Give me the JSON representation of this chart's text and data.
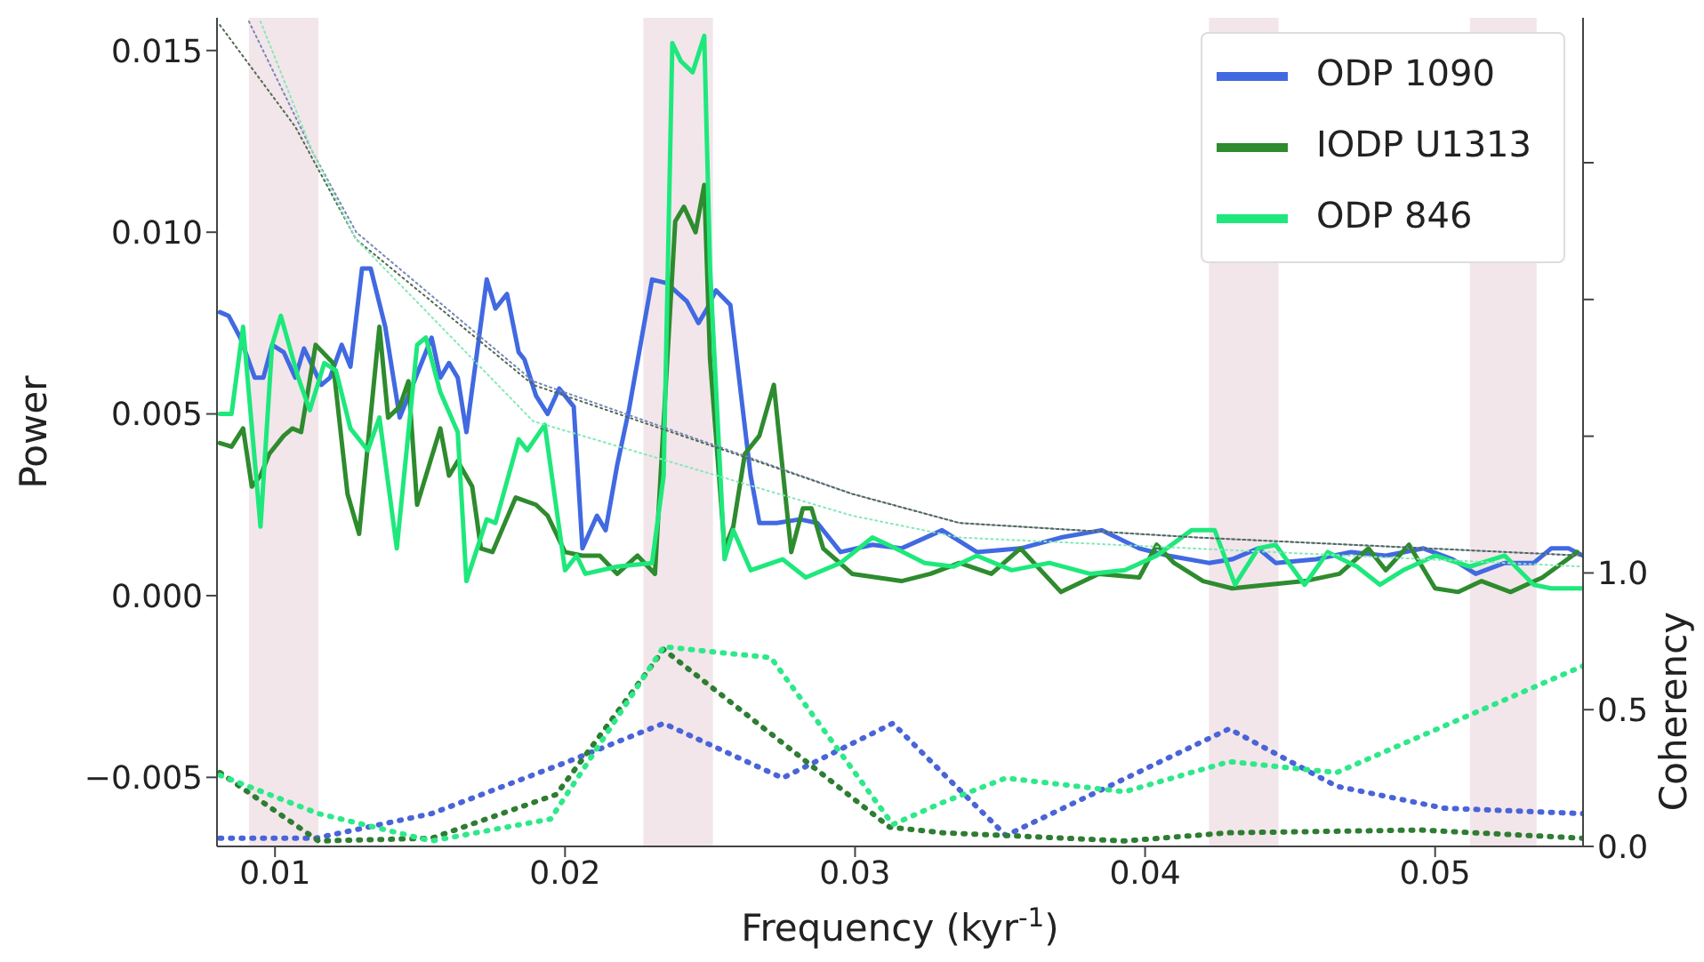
{
  "chart_data": {
    "type": "line",
    "xlabel": "Frequency (kyr$^{-1}$)",
    "ylabel": "Power",
    "y2label": "Coherency",
    "xlim": [
      0.008,
      0.0551
    ],
    "xticks": [
      0.01,
      0.02,
      0.03,
      0.04,
      0.05
    ],
    "ylim": [
      -0.0069,
      0.0159
    ],
    "yticks": [
      {
        "value": -0.005,
        "label": "−0.005"
      },
      {
        "value": 0,
        "label": "0.000"
      },
      {
        "value": 0.005,
        "label": "0.005"
      },
      {
        "value": 0.01,
        "label": "0.010"
      },
      {
        "value": 0.015,
        "label": "0.015"
      }
    ],
    "y2lim": [
      0,
      3.03
    ],
    "y2ticks": [
      {
        "value": 0,
        "label": "0.0"
      },
      {
        "value": 0.5,
        "label": "0.5"
      },
      {
        "value": 1,
        "label": "1.0"
      },
      {
        "value": 1.5,
        "label": null
      },
      {
        "value": 2,
        "label": null
      },
      {
        "value": 2.5,
        "label": null
      }
    ],
    "legend": "top right",
    "bands": [
      {
        "axis": "x",
        "from": 0.0091,
        "to": 0.0115,
        "color": "#f2e6ea"
      },
      {
        "axis": "x",
        "from": 0.0227,
        "to": 0.0251,
        "color": "#f2e6ea"
      },
      {
        "axis": "x",
        "from": 0.0422,
        "to": 0.0446,
        "color": "#f2e6ea"
      },
      {
        "axis": "x",
        "from": 0.0512,
        "to": 0.0535,
        "color": "#f2e6ea"
      }
    ],
    "series": [
      {
        "name": "ODP 1090",
        "color": "#4169e1",
        "line_style": "solid",
        "x": [
          0.0081,
          0.0084,
          0.0088,
          0.0093,
          0.0096,
          0.0099,
          0.0103,
          0.0107,
          0.011,
          0.0116,
          0.0119,
          0.0123,
          0.0126,
          0.013,
          0.0133,
          0.0138,
          0.0143,
          0.0148,
          0.0154,
          0.0157,
          0.016,
          0.0163,
          0.0166,
          0.0173,
          0.0176,
          0.018,
          0.0184,
          0.0186,
          0.019,
          0.0194,
          0.0198,
          0.0203,
          0.0206,
          0.0211,
          0.0214,
          0.0218,
          0.0222,
          0.023,
          0.0235,
          0.0242,
          0.0246,
          0.0249,
          0.0252,
          0.0257,
          0.0264,
          0.0267,
          0.0273,
          0.0281,
          0.0287,
          0.0295,
          0.0306,
          0.0316,
          0.033,
          0.0342,
          0.0357,
          0.0371,
          0.0385,
          0.0398,
          0.0408,
          0.0422,
          0.043,
          0.0439,
          0.0445,
          0.0459,
          0.0471,
          0.0483,
          0.0496,
          0.0506,
          0.0514,
          0.0524,
          0.0534,
          0.054,
          0.0546,
          0.0551
        ],
        "values": [
          0.0078,
          0.0077,
          0.0071,
          0.006,
          0.006,
          0.0069,
          0.0067,
          0.006,
          0.0068,
          0.0058,
          0.006,
          0.0069,
          0.0063,
          0.009,
          0.009,
          0.0074,
          0.0049,
          0.0059,
          0.0071,
          0.006,
          0.0064,
          0.006,
          0.0045,
          0.0087,
          0.0079,
          0.0083,
          0.0067,
          0.0065,
          0.0055,
          0.005,
          0.0057,
          0.0052,
          0.0013,
          0.0022,
          0.0018,
          0.0036,
          0.0051,
          0.0087,
          0.0086,
          0.0081,
          0.0075,
          0.0079,
          0.0084,
          0.008,
          0.0033,
          0.002,
          0.002,
          0.0021,
          0.002,
          0.0012,
          0.0014,
          0.0013,
          0.0018,
          0.0012,
          0.0013,
          0.0016,
          0.0018,
          0.0013,
          0.0011,
          0.0009,
          0.001,
          0.0013,
          0.0009,
          0.001,
          0.0012,
          0.0011,
          0.0013,
          0.001,
          0.0006,
          0.0009,
          0.0009,
          0.0013,
          0.0013,
          0.0011
        ]
      },
      {
        "name": "IODP U1313",
        "color": "#2e8b2e",
        "line_style": "solid",
        "x": [
          0.0081,
          0.0085,
          0.0089,
          0.0092,
          0.0095,
          0.0098,
          0.0103,
          0.0106,
          0.0109,
          0.0114,
          0.012,
          0.0125,
          0.0129,
          0.0136,
          0.0139,
          0.0143,
          0.0146,
          0.0149,
          0.0157,
          0.016,
          0.0163,
          0.0168,
          0.0171,
          0.0175,
          0.0183,
          0.019,
          0.0194,
          0.02,
          0.0206,
          0.0212,
          0.0218,
          0.0225,
          0.0231,
          0.0238,
          0.0241,
          0.0245,
          0.0248,
          0.025,
          0.0255,
          0.0258,
          0.0262,
          0.0267,
          0.0272,
          0.0278,
          0.0282,
          0.0285,
          0.0289,
          0.0299,
          0.0316,
          0.0326,
          0.0336,
          0.0347,
          0.0357,
          0.0371,
          0.0384,
          0.0398,
          0.0404,
          0.041,
          0.042,
          0.043,
          0.0442,
          0.0455,
          0.0467,
          0.0477,
          0.0483,
          0.0491,
          0.05,
          0.0508,
          0.0516,
          0.0526,
          0.0537,
          0.0549
        ],
        "values": [
          0.0042,
          0.0041,
          0.0046,
          0.003,
          0.0033,
          0.0039,
          0.0044,
          0.0046,
          0.0045,
          0.0069,
          0.0064,
          0.0028,
          0.0017,
          0.0074,
          0.0049,
          0.0052,
          0.0059,
          0.0025,
          0.0046,
          0.0033,
          0.0037,
          0.003,
          0.0013,
          0.0012,
          0.0027,
          0.0025,
          0.0022,
          0.0012,
          0.0011,
          0.0011,
          0.0006,
          0.0011,
          0.0006,
          0.0103,
          0.0107,
          0.01,
          0.0113,
          0.0065,
          0.0013,
          0.0019,
          0.0039,
          0.0044,
          0.0058,
          0.0012,
          0.0024,
          0.0024,
          0.0013,
          0.0006,
          0.0004,
          0.0006,
          0.0009,
          0.0006,
          0.0013,
          0.0001,
          0.0006,
          0.0005,
          0.0014,
          0.0009,
          0.0004,
          0.0002,
          0.0003,
          0.0004,
          0.0006,
          0.0013,
          0.0007,
          0.0014,
          0.0002,
          0.0001,
          0.0004,
          0.0001,
          0.0005,
          0.0012
        ]
      },
      {
        "name": "ODP 846",
        "color": "#1ee87c",
        "line_style": "solid",
        "x": [
          0.0081,
          0.0085,
          0.0089,
          0.0095,
          0.0099,
          0.0102,
          0.0108,
          0.0112,
          0.0117,
          0.0121,
          0.0126,
          0.0132,
          0.0136,
          0.0142,
          0.0149,
          0.0152,
          0.0157,
          0.0163,
          0.0166,
          0.0173,
          0.0176,
          0.0184,
          0.0187,
          0.0193,
          0.02,
          0.0204,
          0.0207,
          0.0218,
          0.023,
          0.0234,
          0.0237,
          0.024,
          0.0244,
          0.0248,
          0.025,
          0.0255,
          0.0258,
          0.0264,
          0.0275,
          0.0283,
          0.0295,
          0.0306,
          0.0314,
          0.0324,
          0.0334,
          0.0342,
          0.0354,
          0.0367,
          0.0381,
          0.0393,
          0.0404,
          0.0416,
          0.0424,
          0.0431,
          0.0439,
          0.0445,
          0.0455,
          0.0463,
          0.0473,
          0.0481,
          0.0489,
          0.05,
          0.0512,
          0.0524,
          0.0534,
          0.054,
          0.0551
        ],
        "values": [
          0.005,
          0.005,
          0.0074,
          0.0019,
          0.0069,
          0.0077,
          0.006,
          0.0051,
          0.0064,
          0.0062,
          0.0046,
          0.004,
          0.0049,
          0.0013,
          0.0069,
          0.0071,
          0.0056,
          0.0045,
          0.0004,
          0.0021,
          0.002,
          0.0043,
          0.004,
          0.0047,
          0.0007,
          0.0011,
          0.0006,
          0.0008,
          0.0009,
          0.0033,
          0.0152,
          0.0147,
          0.0144,
          0.0154,
          0.009,
          0.001,
          0.0018,
          0.0007,
          0.001,
          0.0005,
          0.0009,
          0.0016,
          0.0013,
          0.0009,
          0.0008,
          0.0011,
          0.0007,
          0.0009,
          0.0006,
          0.0007,
          0.0011,
          0.0018,
          0.0018,
          0.0003,
          0.0013,
          0.0014,
          0.0003,
          0.0012,
          0.0008,
          0.0003,
          0.0007,
          0.0011,
          0.0008,
          0.0011,
          0.0003,
          0.0002,
          0.0002
        ]
      },
      {
        "color": "#7886b8",
        "line_style": "dotted",
        "x": [
          0.0091,
          0.0113,
          0.0128,
          0.0189,
          0.0299,
          0.0336,
          0.0418,
          0.0551
        ],
        "values": [
          0.0158,
          0.0122,
          0.01,
          0.0059,
          0.0028,
          0.002,
          0.0016,
          0.0011
        ]
      },
      {
        "color": "#4f6a4f",
        "line_style": "dotted",
        "x": [
          0.0081,
          0.0107,
          0.0128,
          0.0189,
          0.0299,
          0.0336,
          0.0418,
          0.0551
        ],
        "values": [
          0.0157,
          0.0129,
          0.0098,
          0.0058,
          0.0028,
          0.002,
          0.0016,
          0.0011
        ]
      },
      {
        "color": "#86e8b8",
        "line_style": "dotted",
        "x": [
          0.0095,
          0.0113,
          0.0128,
          0.0189,
          0.0299,
          0.0336,
          0.0551
        ],
        "values": [
          0.0158,
          0.0122,
          0.0098,
          0.0048,
          0.0022,
          0.0016,
          0.0008
        ]
      },
      {
        "color": "#4a64d8",
        "line_style": "dotted",
        "axis": "y2",
        "x": [
          0.0081,
          0.0114,
          0.0154,
          0.0201,
          0.0234,
          0.0275,
          0.0313,
          0.033,
          0.0352,
          0.0429,
          0.0466,
          0.0503,
          0.0551
        ],
        "values": [
          0.03,
          0.03,
          0.12,
          0.31,
          0.45,
          0.25,
          0.45,
          0.27,
          0.04,
          0.43,
          0.22,
          0.14,
          0.12
        ]
      },
      {
        "color": "#2e7d32",
        "line_style": "dotted",
        "axis": "y2",
        "x": [
          0.0081,
          0.0115,
          0.0154,
          0.0197,
          0.0234,
          0.0312,
          0.033,
          0.0352,
          0.0393,
          0.0429,
          0.0495,
          0.0551
        ],
        "values": [
          0.27,
          0.02,
          0.03,
          0.19,
          0.72,
          0.07,
          0.05,
          0.04,
          0.02,
          0.05,
          0.06,
          0.03
        ]
      },
      {
        "color": "#2ee88a",
        "line_style": "dotted",
        "axis": "y2",
        "x": [
          0.0081,
          0.0115,
          0.0154,
          0.0195,
          0.0234,
          0.0271,
          0.0313,
          0.033,
          0.0352,
          0.0393,
          0.0429,
          0.0466,
          0.0551
        ],
        "values": [
          0.26,
          0.12,
          0.02,
          0.1,
          0.73,
          0.69,
          0.08,
          0.16,
          0.25,
          0.2,
          0.31,
          0.27,
          0.66
        ]
      }
    ]
  }
}
